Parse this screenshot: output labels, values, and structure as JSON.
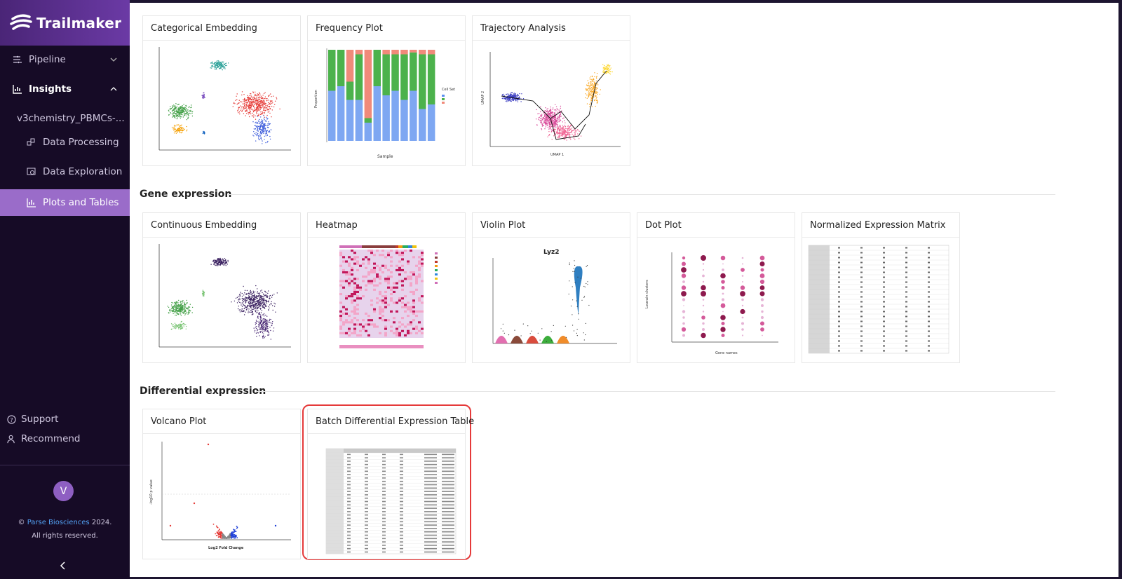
{
  "app": {
    "name": "Trailmaker"
  },
  "sidebar": {
    "nav": [
      {
        "label": "Pipeline",
        "icon": "pipeline-icon"
      },
      {
        "label": "Insights",
        "icon": "insights-icon"
      }
    ],
    "project": "v3chemistry_PBMCs-...",
    "sub_items": [
      {
        "label": "Data Processing",
        "icon": "data-processing-icon"
      },
      {
        "label": "Data Exploration",
        "icon": "data-exploration-icon"
      },
      {
        "label": "Plots and Tables",
        "icon": "plots-tables-icon"
      }
    ],
    "footer": [
      {
        "label": "Support",
        "icon": "help-icon"
      },
      {
        "label": "Recommend",
        "icon": "recommend-icon"
      }
    ],
    "avatar_initial": "V",
    "copyright_prefix": "©",
    "copyright_brand": "Parse Biosciences",
    "copyright_year": "2024.",
    "copyright_rights": "All rights reserved."
  },
  "sections": [
    {
      "title": ""
    },
    {
      "title": "Gene expression"
    },
    {
      "title": "Differential expression"
    }
  ],
  "cards": {
    "categorical_embedding": "Categorical Embedding",
    "frequency_plot": "Frequency Plot",
    "trajectory_analysis": "Trajectory Analysis",
    "continuous_embedding": "Continuous Embedding",
    "heatmap": "Heatmap",
    "violin_plot": "Violin Plot",
    "dot_plot": "Dot Plot",
    "normalized_expression_matrix": "Normalized Expression Matrix",
    "volcano_plot": "Volcano Plot",
    "batch_de_table": "Batch Differential Expression Table"
  },
  "thumbnails": {
    "violin_title": "Lyz2",
    "frequency_xlabel": "Sample",
    "frequency_ylabel": "Proportion",
    "frequency_legend": "Cell Set",
    "trajectory_xlabel": "UMAP 1",
    "trajectory_ylabel": "UMAP 2",
    "volcano_xlabel": "Log2 Fold Change",
    "volcano_ylabel": "-log10 p value",
    "dot_xlabel": "Gene names",
    "dot_ylabel": "Louvain clusters"
  },
  "colors": {
    "sidebar_bg": "#160b26",
    "active_bg": "#9a6cc9",
    "highlight": "#e53a3a",
    "brand_link": "#53a2f5"
  }
}
